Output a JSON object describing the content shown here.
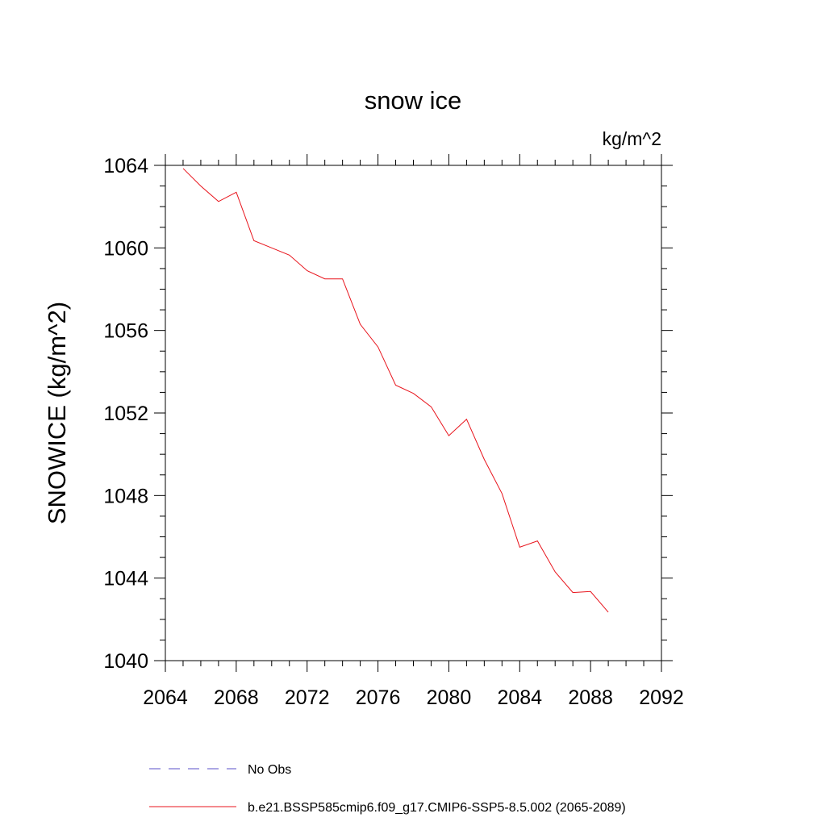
{
  "chart_data": {
    "type": "line",
    "title": "snow ice",
    "units": "kg/m^2",
    "ylabel": "SNOWICE  (kg/m^2)",
    "xlabel": "",
    "xlim": [
      2064,
      2092
    ],
    "ylim": [
      1040,
      1064
    ],
    "x_ticks": [
      "2064",
      "2068",
      "2072",
      "2076",
      "2080",
      "2084",
      "2088",
      "2092"
    ],
    "y_ticks": [
      "1040",
      "1044",
      "1048",
      "1052",
      "1056",
      "1060",
      "1064"
    ],
    "grid": false,
    "legend_position": "bottom",
    "colors": {
      "obs": "#5a4fc8",
      "model": "#e8141c"
    },
    "legend": [
      {
        "label": "No Obs",
        "style": "dashed",
        "color": "#5a4fc8"
      },
      {
        "label": "b.e21.BSSP585cmip6.f09_g17.CMIP6-SSP5-8.5.002 (2065-2089)",
        "style": "solid",
        "color": "#e8141c"
      }
    ],
    "series": [
      {
        "name": "b.e21.BSSP585cmip6.f09_g17.CMIP6-SSP5-8.5.002 (2065-2089)",
        "x": [
          2065,
          2066,
          2067,
          2068,
          2069,
          2070,
          2071,
          2072,
          2073,
          2074,
          2075,
          2076,
          2077,
          2078,
          2079,
          2080,
          2081,
          2082,
          2083,
          2084,
          2085,
          2086,
          2087,
          2088,
          2089
        ],
        "y": [
          1063.85,
          1063.0,
          1062.25,
          1062.7,
          1060.35,
          1060.0,
          1059.65,
          1058.9,
          1058.5,
          1058.5,
          1056.3,
          1055.2,
          1053.35,
          1052.95,
          1052.3,
          1050.9,
          1051.7,
          1049.75,
          1048.1,
          1045.5,
          1045.8,
          1044.3,
          1043.3,
          1043.35,
          1042.35
        ]
      }
    ]
  }
}
